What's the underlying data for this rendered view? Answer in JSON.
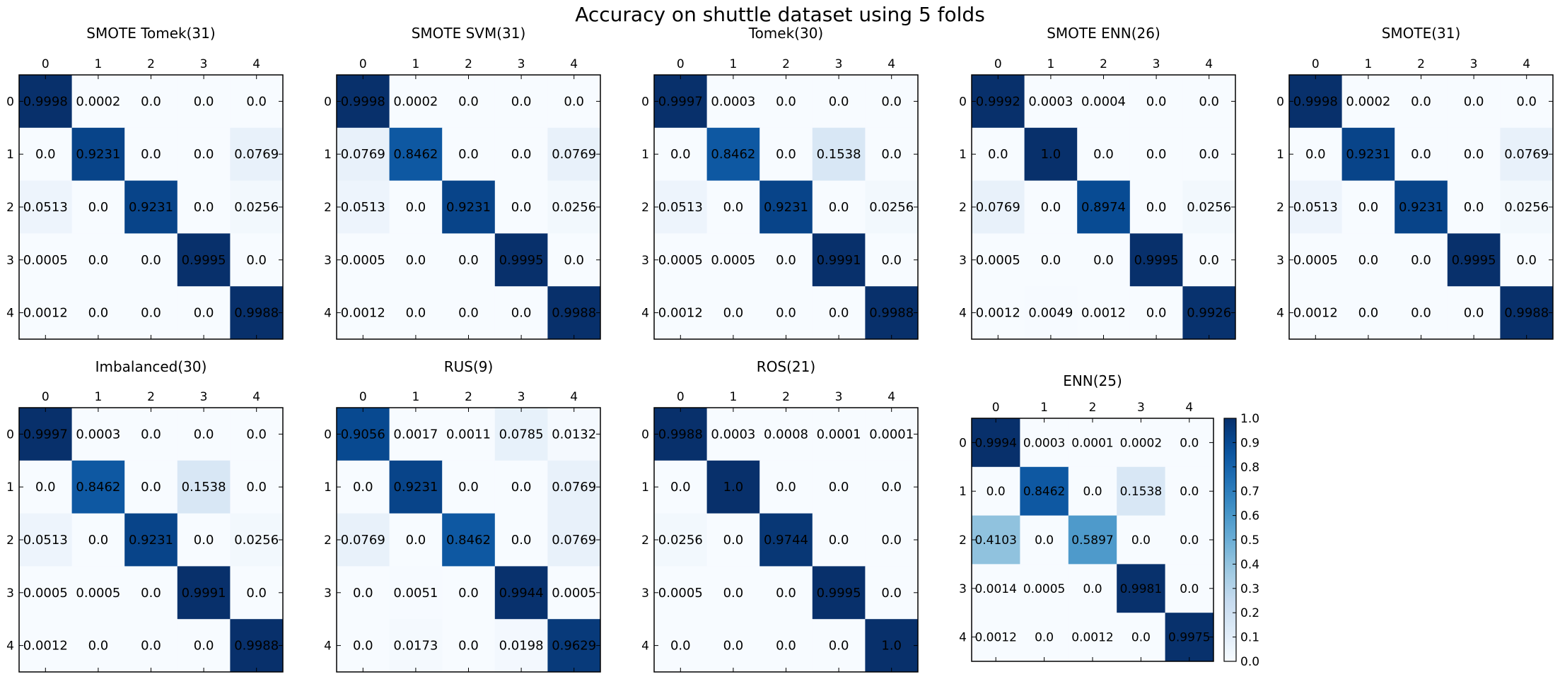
{
  "figure": {
    "title": "Accuracy on shuttle dataset using 5 folds"
  },
  "chart_data": [
    {
      "type": "heatmap",
      "title": "SMOTE Tomek(31)",
      "x_ticks": [
        "0",
        "1",
        "2",
        "3",
        "4"
      ],
      "y_ticks": [
        "0",
        "1",
        "2",
        "3",
        "4"
      ],
      "values": [
        [
          "0.9998",
          "0.0002",
          "0.0",
          "0.0",
          "0.0"
        ],
        [
          "0.0",
          "0.9231",
          "0.0",
          "0.0",
          "0.0769"
        ],
        [
          "0.0513",
          "0.0",
          "0.9231",
          "0.0",
          "0.0256"
        ],
        [
          "0.0005",
          "0.0",
          "0.0",
          "0.9995",
          "0.0"
        ],
        [
          "0.0012",
          "0.0",
          "0.0",
          "0.0",
          "0.9988"
        ]
      ]
    },
    {
      "type": "heatmap",
      "title": "SMOTE SVM(31)",
      "x_ticks": [
        "0",
        "1",
        "2",
        "3",
        "4"
      ],
      "y_ticks": [
        "0",
        "1",
        "2",
        "3",
        "4"
      ],
      "values": [
        [
          "0.9998",
          "0.0002",
          "0.0",
          "0.0",
          "0.0"
        ],
        [
          "0.0769",
          "0.8462",
          "0.0",
          "0.0",
          "0.0769"
        ],
        [
          "0.0513",
          "0.0",
          "0.9231",
          "0.0",
          "0.0256"
        ],
        [
          "0.0005",
          "0.0",
          "0.0",
          "0.9995",
          "0.0"
        ],
        [
          "0.0012",
          "0.0",
          "0.0",
          "0.0",
          "0.9988"
        ]
      ]
    },
    {
      "type": "heatmap",
      "title": "Tomek(30)",
      "x_ticks": [
        "0",
        "1",
        "2",
        "3",
        "4"
      ],
      "y_ticks": [
        "0",
        "1",
        "2",
        "3",
        "4"
      ],
      "values": [
        [
          "0.9997",
          "0.0003",
          "0.0",
          "0.0",
          "0.0"
        ],
        [
          "0.0",
          "0.8462",
          "0.0",
          "0.1538",
          "0.0"
        ],
        [
          "0.0513",
          "0.0",
          "0.9231",
          "0.0",
          "0.0256"
        ],
        [
          "0.0005",
          "0.0005",
          "0.0",
          "0.9991",
          "0.0"
        ],
        [
          "0.0012",
          "0.0",
          "0.0",
          "0.0",
          "0.9988"
        ]
      ]
    },
    {
      "type": "heatmap",
      "title": "SMOTE ENN(26)",
      "x_ticks": [
        "0",
        "1",
        "2",
        "3",
        "4"
      ],
      "y_ticks": [
        "0",
        "1",
        "2",
        "3",
        "4"
      ],
      "values": [
        [
          "0.9992",
          "0.0003",
          "0.0004",
          "0.0",
          "0.0"
        ],
        [
          "0.0",
          "1.0",
          "0.0",
          "0.0",
          "0.0"
        ],
        [
          "0.0769",
          "0.0",
          "0.8974",
          "0.0",
          "0.0256"
        ],
        [
          "0.0005",
          "0.0",
          "0.0",
          "0.9995",
          "0.0"
        ],
        [
          "0.0012",
          "0.0049",
          "0.0012",
          "0.0",
          "0.9926"
        ]
      ]
    },
    {
      "type": "heatmap",
      "title": "SMOTE(31)",
      "x_ticks": [
        "0",
        "1",
        "2",
        "3",
        "4"
      ],
      "y_ticks": [
        "0",
        "1",
        "2",
        "3",
        "4"
      ],
      "values": [
        [
          "0.9998",
          "0.0002",
          "0.0",
          "0.0",
          "0.0"
        ],
        [
          "0.0",
          "0.9231",
          "0.0",
          "0.0",
          "0.0769"
        ],
        [
          "0.0513",
          "0.0",
          "0.9231",
          "0.0",
          "0.0256"
        ],
        [
          "0.0005",
          "0.0",
          "0.0",
          "0.9995",
          "0.0"
        ],
        [
          "0.0012",
          "0.0",
          "0.0",
          "0.0",
          "0.9988"
        ]
      ]
    },
    {
      "type": "heatmap",
      "title": "Imbalanced(30)",
      "x_ticks": [
        "0",
        "1",
        "2",
        "3",
        "4"
      ],
      "y_ticks": [
        "0",
        "1",
        "2",
        "3",
        "4"
      ],
      "values": [
        [
          "0.9997",
          "0.0003",
          "0.0",
          "0.0",
          "0.0"
        ],
        [
          "0.0",
          "0.8462",
          "0.0",
          "0.1538",
          "0.0"
        ],
        [
          "0.0513",
          "0.0",
          "0.9231",
          "0.0",
          "0.0256"
        ],
        [
          "0.0005",
          "0.0005",
          "0.0",
          "0.9991",
          "0.0"
        ],
        [
          "0.0012",
          "0.0",
          "0.0",
          "0.0",
          "0.9988"
        ]
      ]
    },
    {
      "type": "heatmap",
      "title": "RUS(9)",
      "x_ticks": [
        "0",
        "1",
        "2",
        "3",
        "4"
      ],
      "y_ticks": [
        "0",
        "1",
        "2",
        "3",
        "4"
      ],
      "values": [
        [
          "0.9056",
          "0.0017",
          "0.0011",
          "0.0785",
          "0.0132"
        ],
        [
          "0.0",
          "0.9231",
          "0.0",
          "0.0",
          "0.0769"
        ],
        [
          "0.0769",
          "0.0",
          "0.8462",
          "0.0",
          "0.0769"
        ],
        [
          "0.0",
          "0.0051",
          "0.0",
          "0.9944",
          "0.0005"
        ],
        [
          "0.0",
          "0.0173",
          "0.0",
          "0.0198",
          "0.9629"
        ]
      ]
    },
    {
      "type": "heatmap",
      "title": "ROS(21)",
      "x_ticks": [
        "0",
        "1",
        "2",
        "3",
        "4"
      ],
      "y_ticks": [
        "0",
        "1",
        "2",
        "3",
        "4"
      ],
      "values": [
        [
          "0.9988",
          "0.0003",
          "0.0008",
          "0.0001",
          "0.0001"
        ],
        [
          "0.0",
          "1.0",
          "0.0",
          "0.0",
          "0.0"
        ],
        [
          "0.0256",
          "0.0",
          "0.9744",
          "0.0",
          "0.0"
        ],
        [
          "0.0005",
          "0.0",
          "0.0",
          "0.9995",
          "0.0"
        ],
        [
          "0.0",
          "0.0",
          "0.0",
          "0.0",
          "1.0"
        ]
      ]
    },
    {
      "type": "heatmap",
      "title": "ENN(25)",
      "x_ticks": [
        "0",
        "1",
        "2",
        "3",
        "4"
      ],
      "y_ticks": [
        "0",
        "1",
        "2",
        "3",
        "4"
      ],
      "values": [
        [
          "0.9994",
          "0.0003",
          "0.0001",
          "0.0002",
          "0.0"
        ],
        [
          "0.0",
          "0.8462",
          "0.0",
          "0.1538",
          "0.0"
        ],
        [
          "0.4103",
          "0.0",
          "0.5897",
          "0.0",
          "0.0"
        ],
        [
          "0.0014",
          "0.0005",
          "0.0",
          "0.9981",
          "0.0"
        ],
        [
          "0.0012",
          "0.0",
          "0.0012",
          "0.0",
          "0.9975"
        ]
      ]
    }
  ],
  "colorbar": {
    "ticks": [
      "0.0",
      "0.1",
      "0.2",
      "0.3",
      "0.4",
      "0.5",
      "0.6",
      "0.7",
      "0.8",
      "0.9",
      "1.0"
    ],
    "range": [
      0,
      1
    ],
    "colormap": "Blues",
    "color_low": "#f7fbff",
    "color_high": "#08306b"
  }
}
